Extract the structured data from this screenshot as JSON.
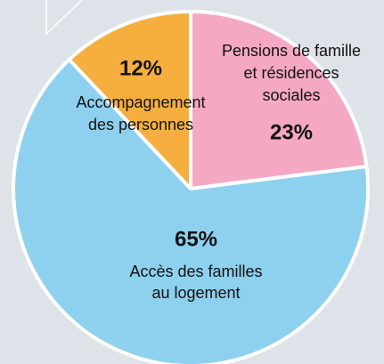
{
  "chart_data": {
    "type": "pie",
    "categories": [
      [
        "Pensions de famille",
        "et résidences",
        "sociales"
      ],
      [
        "Accès des familles",
        "au logement"
      ],
      [
        "Accompagnement",
        "des personnes"
      ]
    ],
    "values": [
      23,
      65,
      12
    ],
    "value_labels": [
      "23%",
      "65%",
      "12%"
    ],
    "colors": [
      "#f4a8c3",
      "#8ed1ef",
      "#f6af3f"
    ]
  }
}
